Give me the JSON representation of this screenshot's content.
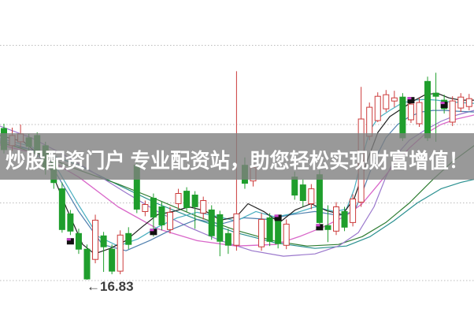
{
  "banner": {
    "text": "炒股配资门户 专业配资站，助您轻松实现财富增值！",
    "bg_color": "#808080",
    "bg_opacity": 0.8,
    "text_color": "#ffffff"
  },
  "chart_data": {
    "type": "candlestick",
    "title": "",
    "xlabel": "",
    "ylabel": "",
    "grid": "dotted-horizontal",
    "gridline_prices": [
      19.82,
      18.81,
      17.81,
      16.82
    ],
    "price_range": [
      16.4,
      19.9
    ],
    "colors": {
      "up_candle": "#cc3b3b",
      "down_candle": "#1f9e2c",
      "marker": "#111111",
      "marker_accent": "#cc44cc",
      "grid": "#bbbbbb"
    },
    "low_annotation": {
      "index": 10,
      "value": 16.83,
      "text": "←16.83",
      "color": "#3c3c3c"
    },
    "candle_columns": [
      "open",
      "high",
      "low",
      "close",
      "direction(u=up/hollow-red, d=down/solid-green)"
    ],
    "candles": [
      [
        18.76,
        18.82,
        18.44,
        18.49,
        "d"
      ],
      [
        18.54,
        18.77,
        18.47,
        18.67,
        "u"
      ],
      [
        18.59,
        18.81,
        18.51,
        18.69,
        "u"
      ],
      [
        18.64,
        18.69,
        18.47,
        18.53,
        "d"
      ],
      [
        18.67,
        18.71,
        18.39,
        18.44,
        "d"
      ],
      [
        18.54,
        18.59,
        18.17,
        18.24,
        "d"
      ],
      [
        18.34,
        18.39,
        17.99,
        18.07,
        "d"
      ],
      [
        17.99,
        18.07,
        17.43,
        17.47,
        "d"
      ],
      [
        17.67,
        17.72,
        17.4,
        17.45,
        "d"
      ],
      [
        17.42,
        17.48,
        17.16,
        17.22,
        "d"
      ],
      [
        17.22,
        17.28,
        16.83,
        16.84,
        "d"
      ],
      [
        17.09,
        17.66,
        17.04,
        17.59,
        "u"
      ],
      [
        17.39,
        17.44,
        16.93,
        17.25,
        "d"
      ],
      [
        17.22,
        17.28,
        16.9,
        16.94,
        "d"
      ],
      [
        16.94,
        17.46,
        16.9,
        17.4,
        "u"
      ],
      [
        17.42,
        17.5,
        17.22,
        17.28,
        "d"
      ],
      [
        18.29,
        18.39,
        17.68,
        17.73,
        "d"
      ],
      [
        17.7,
        17.84,
        17.64,
        17.79,
        "u"
      ],
      [
        17.87,
        17.93,
        17.38,
        17.63,
        "d"
      ],
      [
        17.76,
        17.82,
        17.46,
        17.53,
        "d"
      ],
      [
        17.47,
        17.76,
        17.42,
        17.69,
        "u"
      ],
      [
        17.8,
        17.99,
        17.74,
        17.93,
        "u"
      ],
      [
        17.96,
        18.01,
        17.7,
        17.75,
        "d"
      ],
      [
        17.91,
        17.96,
        17.48,
        17.76,
        "d"
      ],
      [
        17.68,
        17.89,
        17.6,
        17.84,
        "u"
      ],
      [
        17.72,
        17.78,
        17.34,
        17.39,
        "d"
      ],
      [
        17.66,
        17.71,
        17.13,
        17.32,
        "d"
      ],
      [
        17.42,
        17.48,
        17.16,
        17.27,
        "d"
      ],
      [
        17.27,
        19.49,
        17.2,
        17.67,
        "u"
      ],
      [
        18.29,
        18.39,
        17.99,
        18.06,
        "d"
      ],
      [
        18.09,
        18.33,
        18.02,
        18.26,
        "u"
      ],
      [
        17.25,
        17.68,
        17.2,
        17.6,
        "u"
      ],
      [
        17.62,
        17.68,
        17.26,
        17.32,
        "d"
      ],
      [
        17.6,
        17.66,
        17.23,
        17.29,
        "d"
      ],
      [
        17.27,
        17.6,
        17.22,
        17.54,
        "u"
      ],
      [
        18.14,
        18.21,
        17.85,
        17.91,
        "d"
      ],
      [
        18.04,
        18.11,
        17.76,
        17.84,
        "d"
      ],
      [
        17.8,
        18.05,
        17.73,
        17.99,
        "u"
      ],
      [
        18.17,
        18.23,
        17.54,
        17.56,
        "d"
      ],
      [
        17.52,
        17.78,
        17.31,
        17.47,
        "d"
      ],
      [
        17.45,
        17.82,
        17.4,
        17.76,
        "u"
      ],
      [
        17.7,
        17.76,
        17.45,
        17.5,
        "d"
      ],
      [
        17.56,
        17.92,
        17.51,
        17.86,
        "u"
      ],
      [
        17.82,
        19.29,
        17.76,
        18.88,
        "u"
      ],
      [
        18.66,
        19.09,
        18.61,
        19.03,
        "u"
      ],
      [
        18.86,
        19.22,
        18.84,
        19.17,
        "u"
      ],
      [
        19.01,
        19.25,
        18.97,
        19.19,
        "u"
      ],
      [
        19.11,
        19.24,
        19.03,
        19.15,
        "u"
      ],
      [
        19.16,
        19.21,
        18.6,
        18.64,
        "d"
      ],
      [
        18.87,
        19.13,
        18.83,
        19.07,
        "u"
      ],
      [
        18.82,
        19.15,
        18.78,
        19.09,
        "u"
      ],
      [
        19.36,
        19.42,
        18.6,
        18.64,
        "d"
      ],
      [
        19.21,
        19.47,
        18.59,
        19.17,
        "d"
      ],
      [
        19.12,
        19.19,
        18.95,
        19.01,
        "d"
      ],
      [
        18.84,
        19.17,
        18.79,
        19.11,
        "u"
      ],
      [
        19.02,
        19.21,
        18.97,
        19.16,
        "u"
      ],
      [
        19.04,
        19.2,
        18.99,
        19.14,
        "u"
      ]
    ],
    "markers": [
      {
        "index": 8,
        "price": 17.32
      },
      {
        "index": 18,
        "price": 17.44
      },
      {
        "index": 33,
        "price": 17.62
      },
      {
        "index": 38,
        "price": 17.5
      },
      {
        "index": 49,
        "price": 19.12
      },
      {
        "index": 53,
        "price": 19.06
      }
    ],
    "ma_lines": [
      {
        "name": "ma-slow-teal",
        "color": "#2a9090",
        "width": 1.2,
        "points": [
          [
            0,
            18.57
          ],
          [
            50,
            18.47
          ],
          [
            100,
            18.29
          ],
          [
            150,
            18.04
          ],
          [
            200,
            17.8
          ],
          [
            250,
            17.6
          ],
          [
            300,
            17.43
          ],
          [
            350,
            17.3
          ],
          [
            400,
            17.23
          ],
          [
            440,
            17.26
          ],
          [
            470,
            17.38
          ],
          [
            500,
            17.58
          ],
          [
            530,
            17.81
          ],
          [
            560,
            17.99
          ],
          [
            585,
            18.07
          ],
          [
            602,
            18.11
          ]
        ]
      },
      {
        "name": "ma-green",
        "color": "#2f7d32",
        "width": 1.2,
        "points": [
          [
            0,
            18.59
          ],
          [
            50,
            18.43
          ],
          [
            100,
            18.23
          ],
          [
            150,
            18.05
          ],
          [
            200,
            17.85
          ],
          [
            250,
            17.64
          ],
          [
            300,
            17.46
          ],
          [
            350,
            17.32
          ],
          [
            390,
            17.26
          ],
          [
            430,
            17.28
          ],
          [
            460,
            17.38
          ],
          [
            490,
            17.56
          ],
          [
            520,
            17.81
          ],
          [
            550,
            18.11
          ],
          [
            575,
            18.34
          ],
          [
            602,
            18.54
          ]
        ]
      },
      {
        "name": "ma-purple",
        "color": "#9a77cc",
        "width": 1.2,
        "points": [
          [
            0,
            18.79
          ],
          [
            40,
            18.64
          ],
          [
            80,
            18.43
          ],
          [
            120,
            18.19
          ],
          [
            160,
            17.94
          ],
          [
            200,
            17.7
          ],
          [
            240,
            17.5
          ],
          [
            280,
            17.33
          ],
          [
            320,
            17.2
          ],
          [
            360,
            17.13
          ],
          [
            400,
            17.16
          ],
          [
            430,
            17.26
          ],
          [
            455,
            17.43
          ],
          [
            475,
            17.76
          ],
          [
            490,
            18.14
          ],
          [
            505,
            18.44
          ],
          [
            520,
            18.61
          ],
          [
            540,
            18.74
          ],
          [
            560,
            18.85
          ],
          [
            580,
            18.93
          ],
          [
            602,
            18.99
          ]
        ]
      },
      {
        "name": "ma-magenta",
        "color": "#d967c9",
        "width": 1.3,
        "points": [
          [
            0,
            18.55
          ],
          [
            50,
            18.43
          ],
          [
            100,
            18.14
          ],
          [
            150,
            17.76
          ],
          [
            200,
            17.48
          ],
          [
            250,
            17.33
          ],
          [
            300,
            17.26
          ],
          [
            350,
            17.28
          ],
          [
            380,
            17.38
          ],
          [
            410,
            17.5
          ],
          [
            440,
            17.65
          ],
          [
            460,
            17.8
          ],
          [
            480,
            18.04
          ],
          [
            500,
            18.29
          ],
          [
            520,
            18.51
          ],
          [
            540,
            18.69
          ],
          [
            560,
            18.81
          ],
          [
            580,
            18.88
          ],
          [
            602,
            18.93
          ]
        ]
      },
      {
        "name": "ma-blue",
        "color": "#4f7fae",
        "width": 1.2,
        "points": [
          [
            0,
            18.61
          ],
          [
            40,
            18.49
          ],
          [
            70,
            18.21
          ],
          [
            100,
            17.7
          ],
          [
            130,
            17.28
          ],
          [
            160,
            17.2
          ],
          [
            190,
            17.33
          ],
          [
            220,
            17.48
          ],
          [
            250,
            17.6
          ],
          [
            280,
            17.54
          ],
          [
            310,
            17.62
          ],
          [
            340,
            17.6
          ],
          [
            370,
            17.66
          ],
          [
            400,
            17.7
          ],
          [
            430,
            17.65
          ],
          [
            450,
            17.7
          ],
          [
            460,
            17.94
          ],
          [
            475,
            18.34
          ],
          [
            490,
            18.64
          ],
          [
            505,
            18.81
          ],
          [
            520,
            18.91
          ],
          [
            535,
            18.97
          ],
          [
            550,
            18.99
          ],
          [
            565,
            18.99
          ],
          [
            580,
            18.98
          ],
          [
            602,
            18.97
          ]
        ]
      },
      {
        "name": "ma-cyan",
        "color": "#4aafc0",
        "width": 1.2,
        "points": [
          [
            0,
            18.63
          ],
          [
            40,
            18.53
          ],
          [
            70,
            18.29
          ],
          [
            100,
            17.78
          ],
          [
            125,
            17.38
          ],
          [
            150,
            17.26
          ],
          [
            175,
            17.35
          ],
          [
            200,
            17.5
          ],
          [
            225,
            17.62
          ],
          [
            250,
            17.69
          ],
          [
            275,
            17.64
          ],
          [
            300,
            17.58
          ],
          [
            325,
            17.7
          ],
          [
            350,
            17.63
          ],
          [
            375,
            17.68
          ],
          [
            400,
            17.76
          ],
          [
            425,
            17.7
          ],
          [
            440,
            17.73
          ],
          [
            450,
            17.99
          ],
          [
            460,
            18.39
          ],
          [
            470,
            18.74
          ],
          [
            480,
            18.89
          ],
          [
            495,
            18.99
          ],
          [
            510,
            19.08
          ],
          [
            525,
            19.12
          ],
          [
            540,
            19.13
          ],
          [
            555,
            19.12
          ],
          [
            570,
            19.1
          ],
          [
            585,
            19.09
          ],
          [
            602,
            19.08
          ]
        ]
      },
      {
        "name": "ma-black",
        "color": "#222222",
        "width": 1.2,
        "points": [
          [
            0,
            18.67
          ],
          [
            30,
            18.59
          ],
          [
            60,
            18.34
          ],
          [
            85,
            17.73
          ],
          [
            105,
            17.28
          ],
          [
            120,
            17.16
          ],
          [
            140,
            17.23
          ],
          [
            160,
            17.33
          ],
          [
            180,
            17.5
          ],
          [
            200,
            17.66
          ],
          [
            220,
            17.7
          ],
          [
            240,
            17.76
          ],
          [
            260,
            17.71
          ],
          [
            280,
            17.59
          ],
          [
            300,
            17.63
          ],
          [
            315,
            17.8
          ],
          [
            335,
            17.7
          ],
          [
            355,
            17.56
          ],
          [
            375,
            17.72
          ],
          [
            395,
            17.8
          ],
          [
            415,
            17.71
          ],
          [
            435,
            17.66
          ],
          [
            450,
            17.87
          ],
          [
            465,
            18.31
          ],
          [
            480,
            18.71
          ],
          [
            495,
            18.91
          ],
          [
            510,
            19.01
          ],
          [
            525,
            19.11
          ],
          [
            540,
            19.19
          ],
          [
            555,
            19.21
          ],
          [
            570,
            19.15
          ],
          [
            585,
            19.12
          ],
          [
            602,
            19.12
          ]
        ]
      }
    ]
  }
}
